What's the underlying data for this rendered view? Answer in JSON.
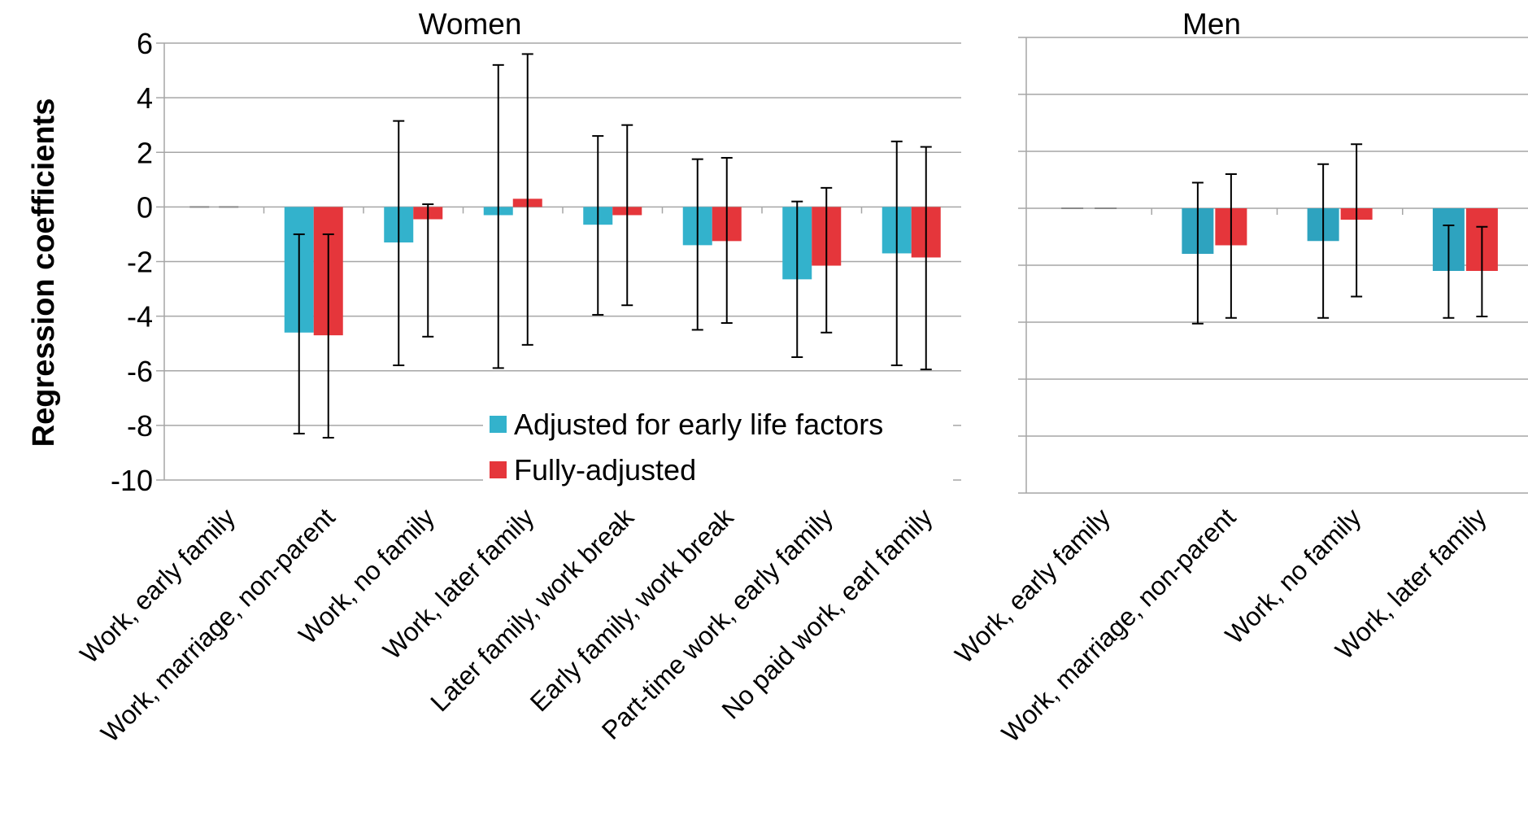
{
  "ylabel": "Regression coefficients",
  "chart_data": [
    {
      "type": "bar",
      "title": "Women",
      "ylabel": "Regression coefficients",
      "ylim": [
        -10,
        6
      ],
      "yticks": [
        6,
        4,
        2,
        0,
        -2,
        -4,
        -6,
        -8,
        -10
      ],
      "grid": true,
      "categories": [
        "Work, early family",
        "Work, marriage, non-parent",
        "Work, no family",
        "Work, later family",
        "Later family, work break",
        "Early family, work break",
        "Part-time work, early family",
        "No paid work, earl family"
      ],
      "series": [
        {
          "name": "Adjusted for early life factors",
          "color": "#33b2cc",
          "values": [
            0,
            -4.6,
            -1.3,
            -0.3,
            -0.65,
            -1.4,
            -2.65,
            -1.7
          ],
          "ci_low": [
            null,
            -8.3,
            -5.8,
            -5.9,
            -3.95,
            -4.5,
            -5.5,
            -5.8
          ],
          "ci_high": [
            null,
            -1.0,
            3.15,
            5.2,
            2.6,
            1.75,
            0.2,
            2.4
          ]
        },
        {
          "name": "Fully-adjusted",
          "color": "#e5363b",
          "values": [
            0,
            -4.7,
            -0.45,
            0.3,
            -0.3,
            -1.25,
            -2.15,
            -1.85
          ],
          "ci_low": [
            null,
            -8.45,
            -4.75,
            -5.05,
            -3.6,
            -4.25,
            -4.6,
            -5.95
          ],
          "ci_high": [
            null,
            -1.0,
            0.1,
            5.6,
            3.0,
            1.8,
            0.7,
            2.2
          ]
        }
      ],
      "legend": {
        "position": "bottom-right",
        "entries": [
          "Adjusted for early life factors",
          "Fully-adjusted"
        ]
      }
    },
    {
      "type": "bar",
      "title": "Men",
      "ylim": [
        -10,
        6
      ],
      "grid": true,
      "categories": [
        "Work, early family",
        "Work, marriage, non-parent",
        "Work, no family",
        "Work, later family"
      ],
      "series": [
        {
          "name": "Adjusted for early life factors",
          "color": "#2ea3bf",
          "values": [
            0,
            -1.6,
            -1.15,
            -2.2
          ],
          "ci_low": [
            null,
            -4.05,
            -3.85,
            -3.85
          ],
          "ci_high": [
            null,
            0.9,
            1.55,
            -0.6
          ]
        },
        {
          "name": "Fully-adjusted",
          "color": "#e5363b",
          "values": [
            0,
            -1.3,
            -0.4,
            -2.2
          ],
          "ci_low": [
            null,
            -3.85,
            -3.1,
            -3.8
          ],
          "ci_high": [
            null,
            1.2,
            2.25,
            -0.65
          ]
        }
      ]
    }
  ]
}
